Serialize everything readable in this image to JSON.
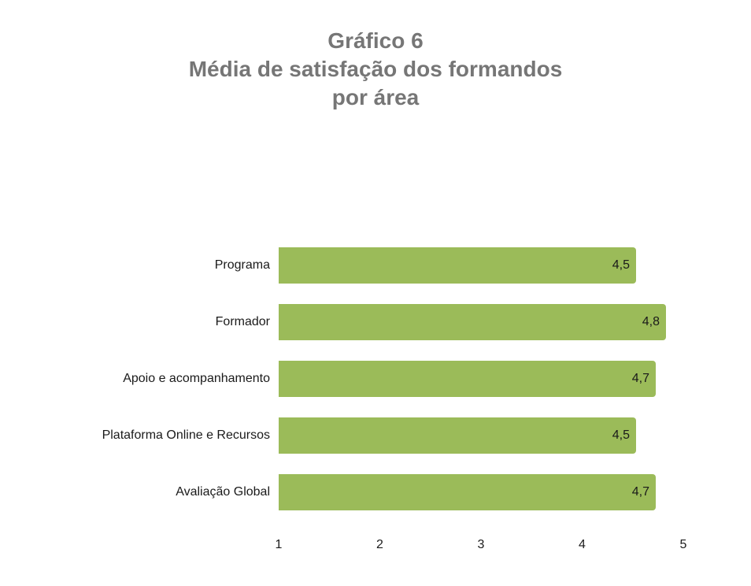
{
  "chart_data": {
    "type": "bar",
    "orientation": "horizontal",
    "title": "Gráfico 6 Média de satisfação dos formandos por área",
    "title_lines": [
      "Gráfico 6",
      "Média de satisfação dos formandos",
      "por área"
    ],
    "categories": [
      "Programa",
      "Formador",
      "Apoio e acompanhamento",
      "Plataforma Online e Recursos",
      "Avaliação Global"
    ],
    "values": [
      4.5,
      4.8,
      4.7,
      4.5,
      4.7
    ],
    "value_labels": [
      "4,5",
      "4,8",
      "4,7",
      "4,5",
      "4,7"
    ],
    "xlabel": "",
    "ylabel": "",
    "xlim": [
      1,
      5
    ],
    "x_ticks": [
      "1",
      "2",
      "3",
      "4",
      "5"
    ],
    "grid": false,
    "legend": null,
    "bar_color": "#9bbb59"
  }
}
